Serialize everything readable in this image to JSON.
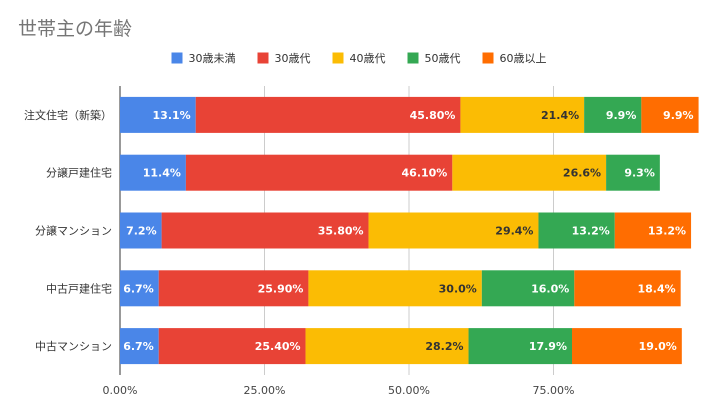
{
  "chart_data": {
    "type": "bar",
    "orientation": "horizontal",
    "stacked": true,
    "title": "世帯主の年齢",
    "categories": [
      "注文住宅（新築）",
      "分譲戸建住宅",
      "分譲マンション",
      "中古戸建住宅",
      "中古マンション"
    ],
    "series": [
      {
        "name": "30歳未満",
        "color": "#4a86e8",
        "values": [
          13.1,
          11.4,
          7.2,
          6.7,
          6.7
        ],
        "labels": [
          "13.1%",
          "11.4%",
          "7.2%",
          "6.7%",
          "6.7%"
        ],
        "label_color": "#ffffff"
      },
      {
        "name": "30歳代",
        "color": "#e84336",
        "values": [
          45.8,
          46.1,
          35.8,
          25.9,
          25.4
        ],
        "labels": [
          "45.80%",
          "46.10%",
          "35.80%",
          "25.90%",
          "25.40%"
        ],
        "label_color": "#ffffff"
      },
      {
        "name": "40歳代",
        "color": "#fbbc04",
        "values": [
          21.4,
          26.6,
          29.4,
          30.0,
          28.2
        ],
        "labels": [
          "21.4%",
          "26.6%",
          "29.4%",
          "30.0%",
          "28.2%"
        ],
        "label_color": "#333333"
      },
      {
        "name": "50歳代",
        "color": "#34a853",
        "values": [
          9.9,
          9.3,
          13.2,
          16.0,
          17.9
        ],
        "labels": [
          "9.9%",
          "9.3%",
          "13.2%",
          "16.0%",
          "17.9%"
        ],
        "label_color": "#ffffff"
      },
      {
        "name": "60歳以上",
        "color": "#ff6d01",
        "values": [
          9.9,
          0,
          13.2,
          18.4,
          19.0
        ],
        "labels": [
          "9.9%",
          "",
          "13.2%",
          "18.4%",
          "19.0%"
        ],
        "label_color": "#ffffff"
      }
    ],
    "xlim": [
      0,
      100
    ],
    "x_ticks": [
      0,
      25,
      50,
      75
    ],
    "x_tick_labels": [
      "0.00%",
      "25.00%",
      "50.00%",
      "75.00%"
    ],
    "xlabel": "",
    "ylabel": "",
    "legend_position": "top",
    "grid": true
  }
}
